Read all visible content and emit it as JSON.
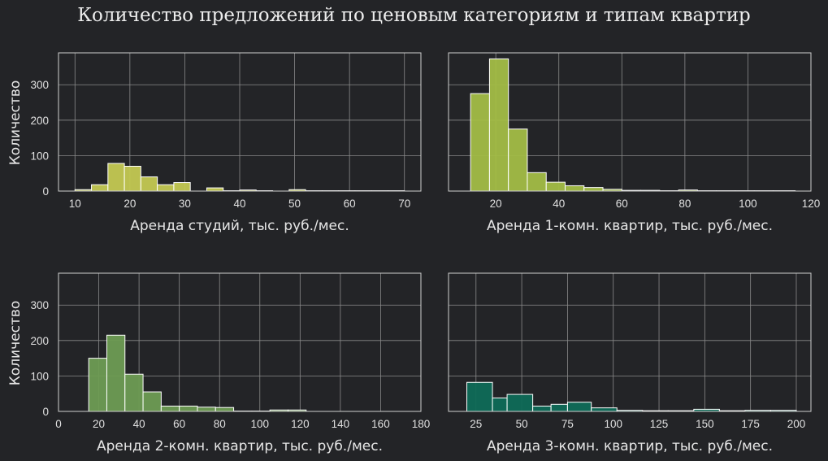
{
  "title": "Количество предложений по ценовым категориям и типам квартир",
  "chart_data": [
    {
      "type": "bar",
      "xlabel": "Аренда студий, тыс. руб./мес.",
      "ylabel": "Количество",
      "color": "#c4c952",
      "xlim": [
        7,
        73
      ],
      "ylim": [
        0,
        390
      ],
      "xticks": [
        10,
        20,
        30,
        40,
        50,
        60,
        70
      ],
      "yticks": [
        0,
        100,
        200,
        300
      ],
      "show_yticks": true,
      "grid": true,
      "bins": [
        {
          "x0": 10,
          "x1": 13,
          "y": 4
        },
        {
          "x0": 13,
          "x1": 16,
          "y": 18
        },
        {
          "x0": 16,
          "x1": 19,
          "y": 78
        },
        {
          "x0": 19,
          "x1": 22,
          "y": 70
        },
        {
          "x0": 22,
          "x1": 25,
          "y": 40
        },
        {
          "x0": 25,
          "x1": 28,
          "y": 18
        },
        {
          "x0": 28,
          "x1": 31,
          "y": 24
        },
        {
          "x0": 31,
          "x1": 34,
          "y": 0
        },
        {
          "x0": 34,
          "x1": 37,
          "y": 9
        },
        {
          "x0": 37,
          "x1": 40,
          "y": 1
        },
        {
          "x0": 40,
          "x1": 43,
          "y": 3
        },
        {
          "x0": 43,
          "x1": 46,
          "y": 1
        },
        {
          "x0": 46,
          "x1": 49,
          "y": 0
        },
        {
          "x0": 49,
          "x1": 52,
          "y": 4
        },
        {
          "x0": 52,
          "x1": 55,
          "y": 1
        },
        {
          "x0": 55,
          "x1": 58,
          "y": 1
        },
        {
          "x0": 58,
          "x1": 61,
          "y": 1
        },
        {
          "x0": 61,
          "x1": 64,
          "y": 1
        },
        {
          "x0": 64,
          "x1": 67,
          "y": 1
        },
        {
          "x0": 67,
          "x1": 70,
          "y": 1
        }
      ]
    },
    {
      "type": "bar",
      "xlabel": "Аренда 1-комн. квартир, тыс. руб./мес.",
      "ylabel": "",
      "color": "#a3bd46",
      "xlim": [
        5,
        120
      ],
      "ylim": [
        0,
        390
      ],
      "xticks": [
        20,
        40,
        60,
        80,
        100,
        120
      ],
      "yticks": [
        0,
        100,
        200,
        300
      ],
      "show_yticks": false,
      "grid": true,
      "bins": [
        {
          "x0": 12,
          "x1": 18,
          "y": 275
        },
        {
          "x0": 18,
          "x1": 24,
          "y": 373
        },
        {
          "x0": 24,
          "x1": 30,
          "y": 175
        },
        {
          "x0": 30,
          "x1": 36,
          "y": 52
        },
        {
          "x0": 36,
          "x1": 42,
          "y": 25
        },
        {
          "x0": 42,
          "x1": 48,
          "y": 15
        },
        {
          "x0": 48,
          "x1": 54,
          "y": 10
        },
        {
          "x0": 54,
          "x1": 60,
          "y": 5
        },
        {
          "x0": 60,
          "x1": 66,
          "y": 2
        },
        {
          "x0": 66,
          "x1": 72,
          "y": 2
        },
        {
          "x0": 72,
          "x1": 78,
          "y": 1
        },
        {
          "x0": 78,
          "x1": 84,
          "y": 3
        },
        {
          "x0": 84,
          "x1": 90,
          "y": 1
        },
        {
          "x0": 90,
          "x1": 96,
          "y": 1
        },
        {
          "x0": 96,
          "x1": 102,
          "y": 1
        },
        {
          "x0": 102,
          "x1": 108,
          "y": 1
        },
        {
          "x0": 108,
          "x1": 115,
          "y": 1
        }
      ]
    },
    {
      "type": "bar",
      "xlabel": "Аренда 2-комн. квартир, тыс. руб./мес.",
      "ylabel": "Количество",
      "color": "#6e9c53",
      "xlim": [
        0,
        180
      ],
      "ylim": [
        0,
        390
      ],
      "xticks": [
        0,
        20,
        40,
        60,
        80,
        100,
        120,
        140,
        160,
        180
      ],
      "yticks": [
        0,
        100,
        200,
        300
      ],
      "show_yticks": true,
      "grid": true,
      "bins": [
        {
          "x0": 15,
          "x1": 24,
          "y": 150
        },
        {
          "x0": 24,
          "x1": 33,
          "y": 215
        },
        {
          "x0": 33,
          "x1": 42,
          "y": 105
        },
        {
          "x0": 42,
          "x1": 51,
          "y": 55
        },
        {
          "x0": 51,
          "x1": 60,
          "y": 15
        },
        {
          "x0": 60,
          "x1": 69,
          "y": 15
        },
        {
          "x0": 69,
          "x1": 78,
          "y": 12
        },
        {
          "x0": 78,
          "x1": 87,
          "y": 11
        },
        {
          "x0": 87,
          "x1": 96,
          "y": 1
        },
        {
          "x0": 96,
          "x1": 105,
          "y": 1
        },
        {
          "x0": 105,
          "x1": 114,
          "y": 4
        },
        {
          "x0": 114,
          "x1": 123,
          "y": 4
        }
      ]
    },
    {
      "type": "bar",
      "xlabel": "Аренда 3-комн. квартир, тыс. руб./мес.",
      "ylabel": "",
      "color": "#0f6b57",
      "xlim": [
        10,
        208
      ],
      "ylim": [
        0,
        390
      ],
      "xticks": [
        25,
        50,
        75,
        100,
        125,
        150,
        175,
        200
      ],
      "yticks": [
        0,
        100,
        200,
        300
      ],
      "show_yticks": false,
      "grid": true,
      "bins": [
        {
          "x0": 20,
          "x1": 34,
          "y": 82
        },
        {
          "x0": 34,
          "x1": 42,
          "y": 38
        },
        {
          "x0": 42,
          "x1": 56,
          "y": 48
        },
        {
          "x0": 56,
          "x1": 66,
          "y": 15
        },
        {
          "x0": 66,
          "x1": 75,
          "y": 20
        },
        {
          "x0": 75,
          "x1": 88,
          "y": 26
        },
        {
          "x0": 88,
          "x1": 102,
          "y": 10
        },
        {
          "x0": 102,
          "x1": 116,
          "y": 3
        },
        {
          "x0": 116,
          "x1": 130,
          "y": 2
        },
        {
          "x0": 130,
          "x1": 144,
          "y": 2
        },
        {
          "x0": 144,
          "x1": 158,
          "y": 6
        },
        {
          "x0": 158,
          "x1": 172,
          "y": 2
        },
        {
          "x0": 172,
          "x1": 186,
          "y": 3
        },
        {
          "x0": 186,
          "x1": 200,
          "y": 3
        }
      ]
    }
  ]
}
